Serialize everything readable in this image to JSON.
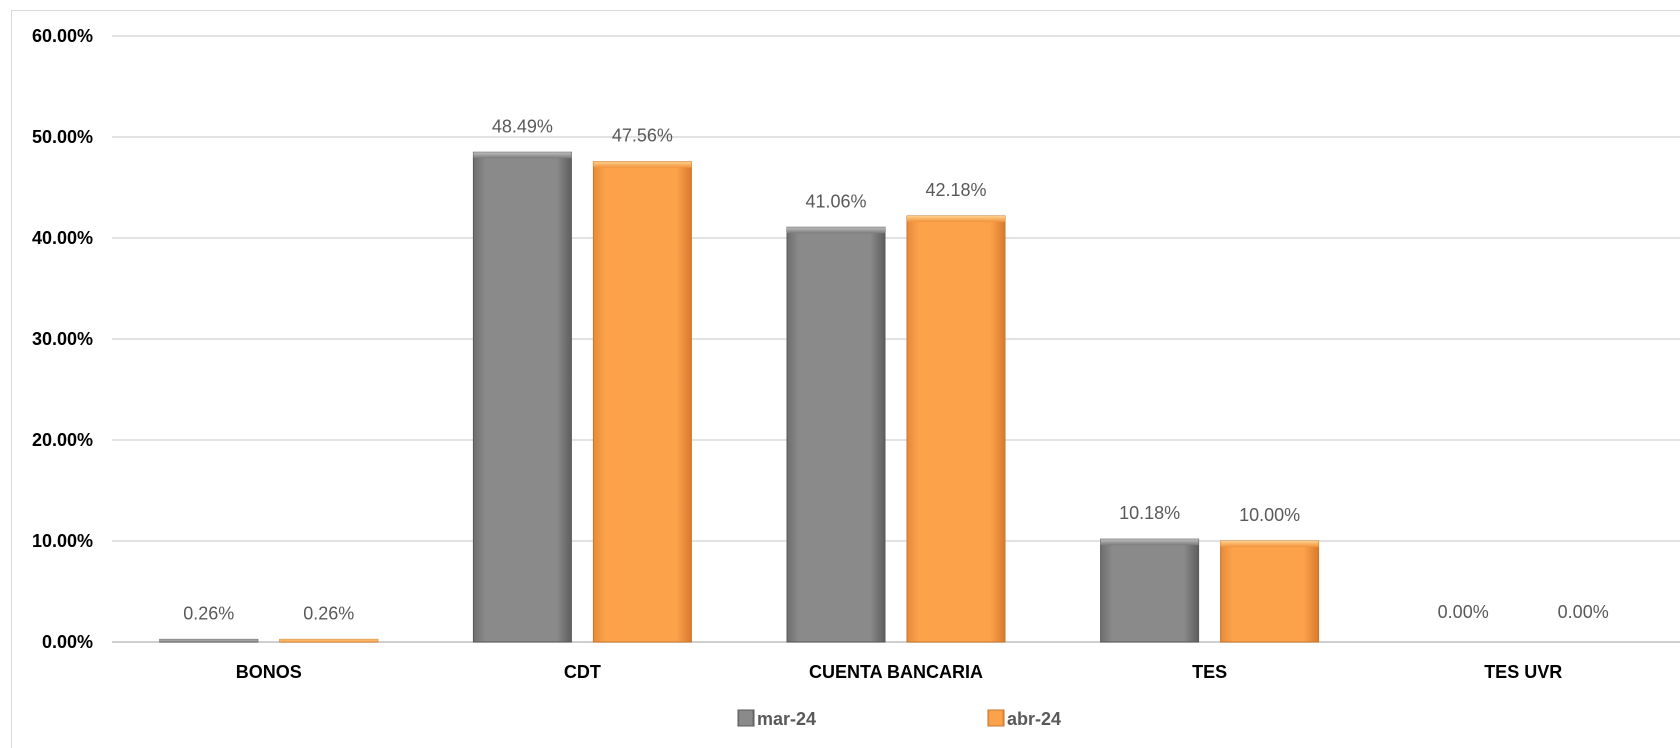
{
  "chart_data": {
    "type": "bar",
    "categories": [
      "BONOS",
      "CDT",
      "CUENTA BANCARIA",
      "TES",
      "TES UVR"
    ],
    "series": [
      {
        "name": "mar-24",
        "values": [
          0.26,
          48.49,
          41.06,
          10.18,
          0.0
        ],
        "labels": [
          "0.26%",
          "48.49%",
          "41.06%",
          "10.18%",
          "0.00%"
        ],
        "color": "#888888"
      },
      {
        "name": "abr-24",
        "values": [
          0.26,
          47.56,
          42.18,
          10.0,
          0.0
        ],
        "labels": [
          "0.26%",
          "47.56%",
          "42.18%",
          "10.00%",
          "0.00%"
        ],
        "color": "#F79D45"
      }
    ],
    "yticks": [
      "0.00%",
      "10.00%",
      "20.00%",
      "30.00%",
      "40.00%",
      "50.00%",
      "60.00%"
    ],
    "ylim": [
      0,
      60
    ],
    "grid": true,
    "legend_position": "bottom",
    "title": "",
    "xlabel": "",
    "ylabel": ""
  }
}
